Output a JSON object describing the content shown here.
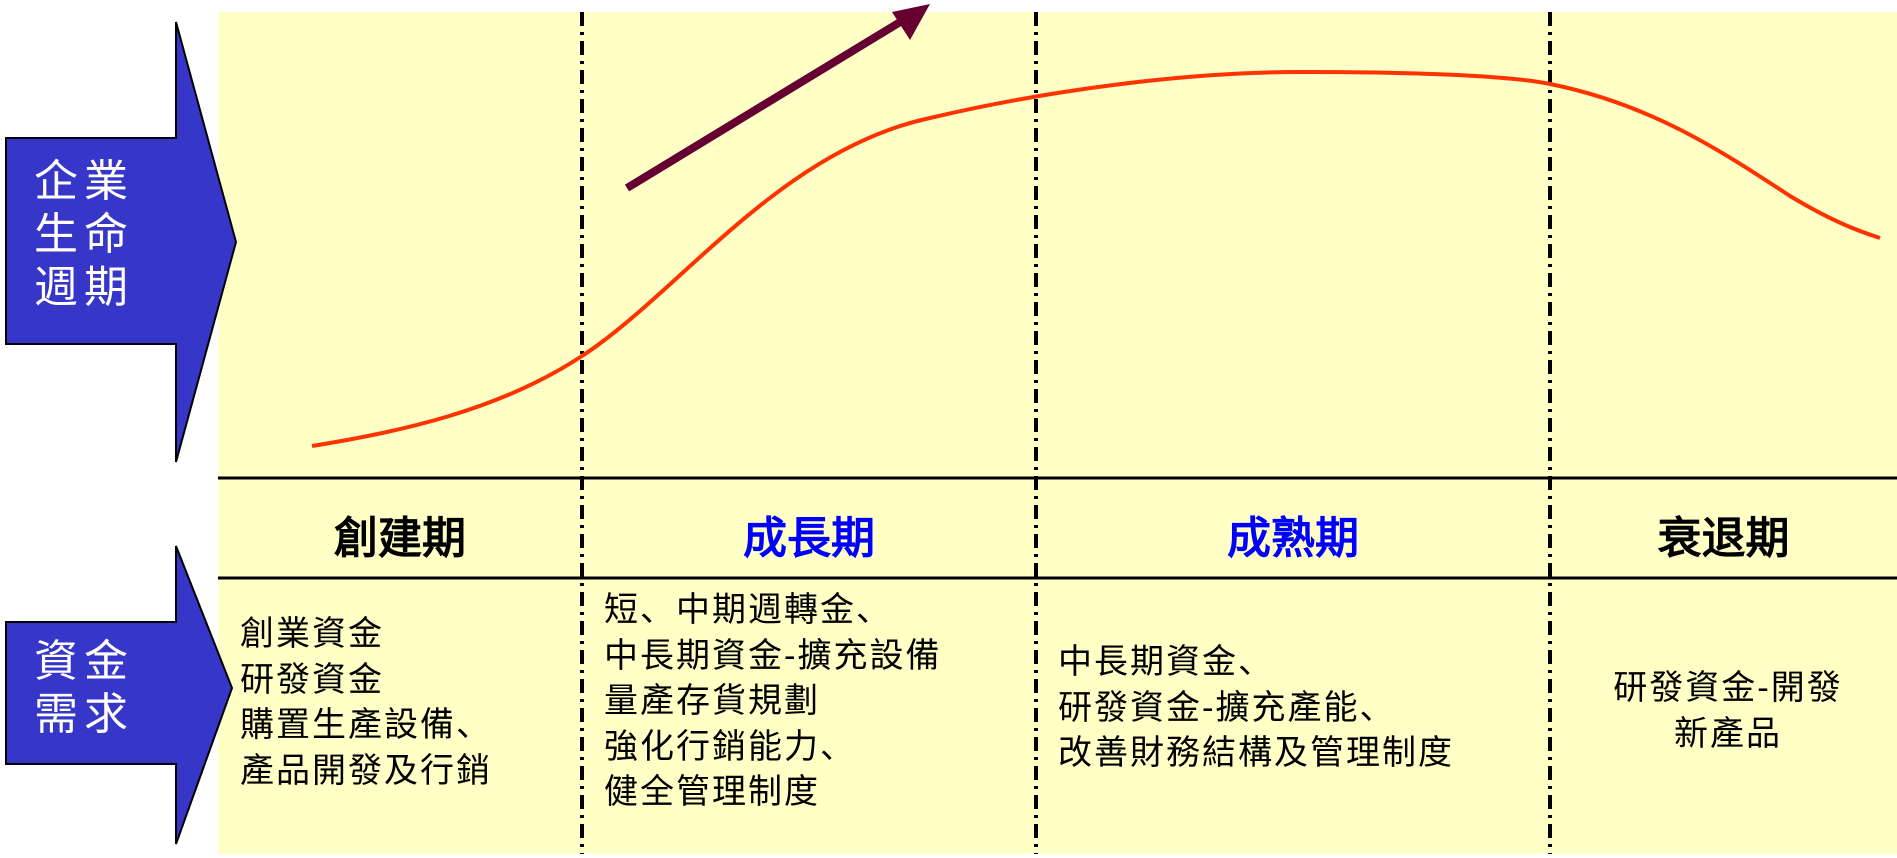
{
  "left_labels": {
    "lifecycle": "企業\n生命\n週期",
    "funding": "資金\n需求"
  },
  "stages": [
    {
      "name": "創建期",
      "color": "#000000",
      "needs": "創業資金\n研發資金\n購置生產設備、\n產品開發及行銷"
    },
    {
      "name": "成長期",
      "color": "#0000ff",
      "needs": "短、中期週轉金、\n中長期資金-擴充設備\n量產存貨規劃\n強化行銷能力、\n健全管理制度"
    },
    {
      "name": "成熟期",
      "color": "#0000ff",
      "needs": "中長期資金、\n研發資金-擴充產能、\n改善財務結構及管理制度"
    },
    {
      "name": "衰退期",
      "color": "#000000",
      "needs": "研發資金-開發\n新產品"
    }
  ],
  "colors": {
    "panel": "#ffffc6",
    "arrow": "#3636c8",
    "curve": "#ff3300",
    "trend_arrow": "#660033",
    "divider": "#000000"
  }
}
